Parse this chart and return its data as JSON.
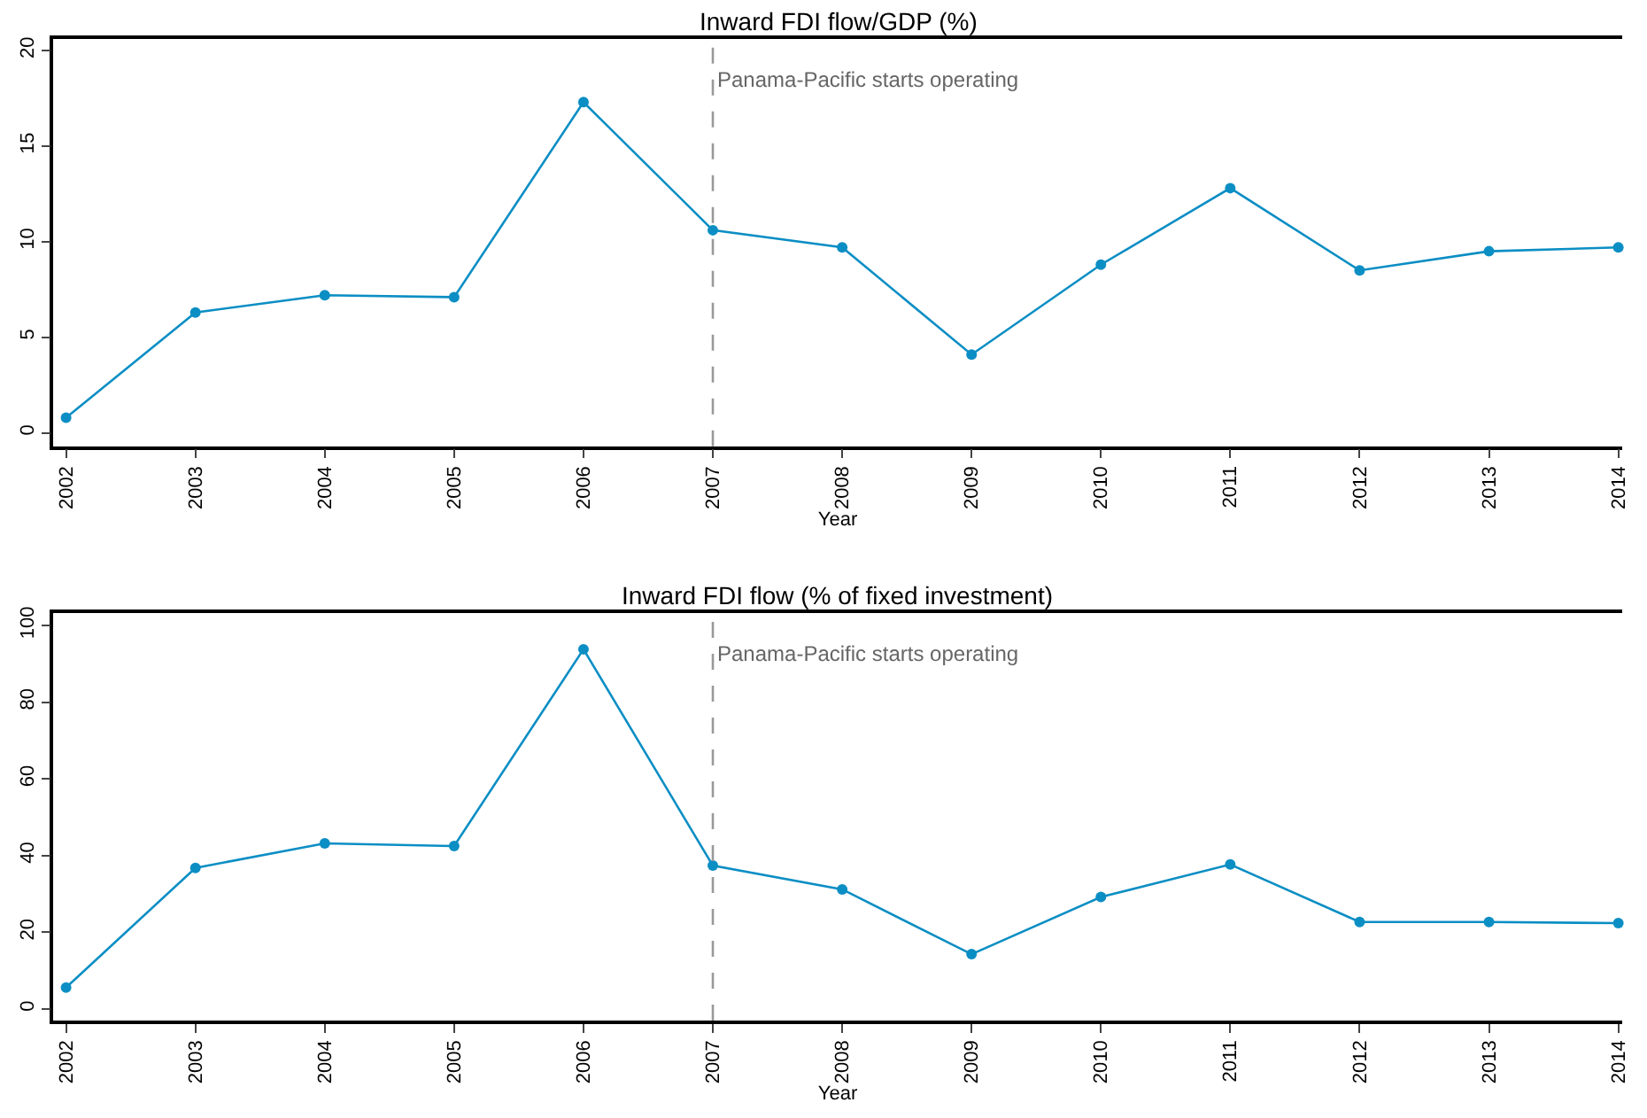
{
  "chart_data": [
    {
      "type": "line",
      "title": "Inward FDI flow/GDP (%)",
      "xlabel": "Year",
      "x": [
        2002,
        2003,
        2004,
        2005,
        2006,
        2007,
        2008,
        2009,
        2010,
        2011,
        2012,
        2013,
        2014
      ],
      "series": [
        {
          "color": "#0b8ec4",
          "values": [
            0.8,
            6.3,
            7.2,
            7.1,
            17.3,
            10.6,
            9.7,
            4.1,
            8.8,
            12.8,
            8.5,
            9.5,
            9.7
          ]
        }
      ],
      "xlim": [
        2001.9,
        2014.03
      ],
      "xticks": [
        2002,
        2003,
        2004,
        2005,
        2006,
        2007,
        2008,
        2009,
        2010,
        2011,
        2012,
        2013,
        2014
      ],
      "ylim": [
        -0.7,
        20.6
      ],
      "yticks": [
        0,
        5,
        10,
        15,
        20
      ],
      "ref_lines": [
        {
          "axis": "x",
          "value": 2007,
          "label": "Panama-Pacific starts operating",
          "color": "#999999",
          "line_style": "dashed"
        }
      ],
      "marker": "circle",
      "line_style": "solid"
    },
    {
      "type": "line",
      "title": "Inward FDI flow (% of fixed investment)",
      "xlabel": "Year",
      "x": [
        2002,
        2003,
        2004,
        2005,
        2006,
        2007,
        2008,
        2009,
        2010,
        2011,
        2012,
        2013,
        2014
      ],
      "series": [
        {
          "color": "#0b8ec4",
          "values": [
            5.6,
            36.8,
            43.2,
            42.5,
            93.8,
            37.4,
            31.2,
            14.3,
            29.2,
            37.7,
            22.7,
            22.7,
            22.4
          ]
        }
      ],
      "xlim": [
        2001.9,
        2014.03
      ],
      "xticks": [
        2002,
        2003,
        2004,
        2005,
        2006,
        2007,
        2008,
        2009,
        2010,
        2011,
        2012,
        2013,
        2014
      ],
      "ylim": [
        -3,
        103.2
      ],
      "yticks": [
        0,
        20,
        40,
        60,
        80,
        100
      ],
      "ref_lines": [
        {
          "axis": "x",
          "value": 2007,
          "label": "Panama-Pacific starts operating",
          "color": "#999999",
          "line_style": "dashed"
        }
      ],
      "marker": "circle",
      "line_style": "solid"
    }
  ]
}
